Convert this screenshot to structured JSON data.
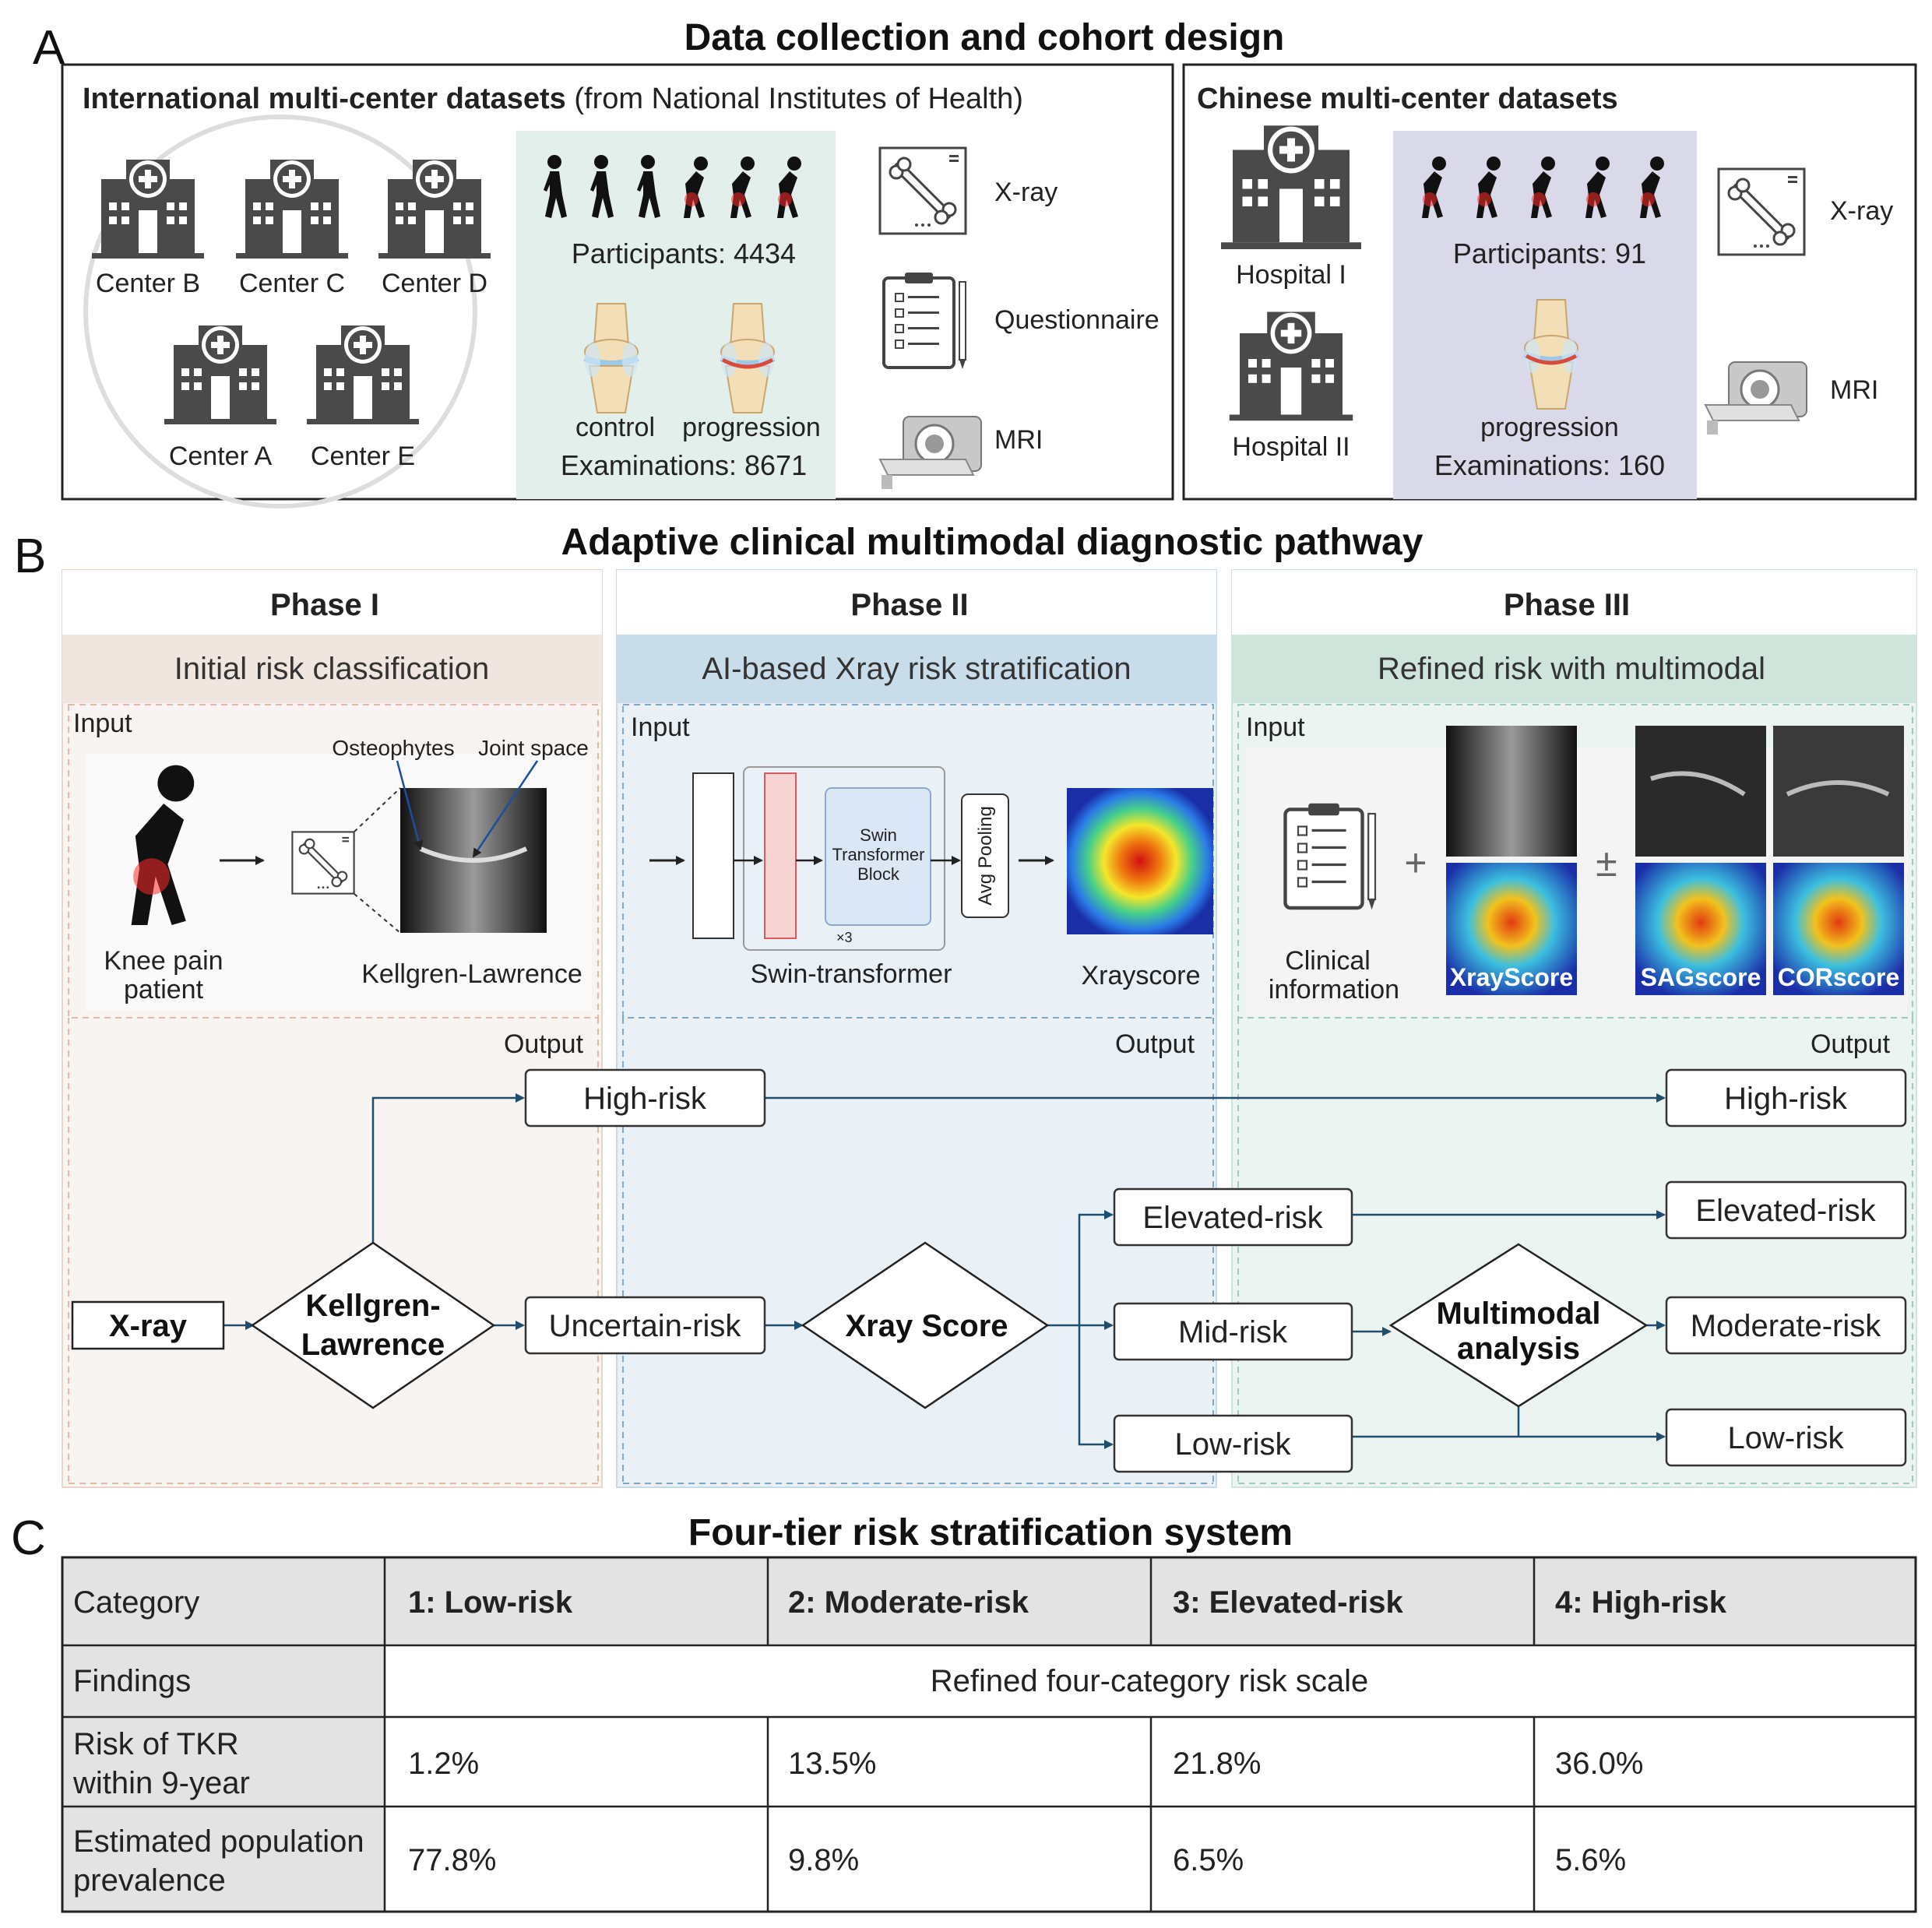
{
  "panel_a": {
    "label": "A",
    "title": "Data collection and cohort design",
    "intl": {
      "title_bold": "International multi-center datasets",
      "title_rest": " (from National Institutes of Health)",
      "centers": [
        "Center B",
        "Center C",
        "Center D",
        "Center A",
        "Center E"
      ],
      "participants": "Participants: 4434",
      "control": "control",
      "progression": "progression",
      "examinations": "Examinations: 8671",
      "modalities": [
        "X-ray",
        "Questionnaire",
        "MRI"
      ]
    },
    "cn": {
      "title": "Chinese multi-center datasets",
      "hospitals": [
        "Hospital I",
        "Hospital II"
      ],
      "participants": "Participants: 91",
      "progression": "progression",
      "examinations": "Examinations: 160",
      "modalities": [
        "X-ray",
        "MRI"
      ]
    },
    "colors": {
      "intl_bg": "#e3efea",
      "cn_bg": "#d9d9ea"
    }
  },
  "panel_b": {
    "label": "B",
    "title": "Adaptive clinical multimodal diagnostic pathway",
    "phases": [
      {
        "name": "Phase I",
        "subtitle": "Initial risk classification",
        "color": "#f1e6df"
      },
      {
        "name": "Phase II",
        "subtitle": "AI-based Xray risk stratification",
        "color": "#c9dcea"
      },
      {
        "name": "Phase III",
        "subtitle": "Refined risk with multimodal",
        "color": "#cfe5dc"
      }
    ],
    "input_label": "Input",
    "output_label": "Output",
    "phase1": {
      "osteophytes": "Osteophytes",
      "joint_space": "Joint space",
      "patient_line1": "Knee pain",
      "patient_line2": "patient",
      "kl": "Kellgren-Lawrence"
    },
    "phase2": {
      "swin_line1": "Swin",
      "swin_line2": "Transformer",
      "swin_line3": "Block",
      "x3": "×3",
      "avg_pooling": "Avg Pooling",
      "swin_label": "Swin-transformer",
      "xrayscore": "Xrayscore"
    },
    "phase3": {
      "clinical_line1": "Clinical",
      "clinical_line2": "information",
      "plus": "+",
      "plusminus": "±",
      "xray_score_tag": "XrayScore",
      "sag_tag": "SAGscore",
      "cor_tag": "CORscore"
    },
    "flow": {
      "xray": "X-ray",
      "kl_line1": "Kellgren-",
      "kl_line2": "Lawrence",
      "high_risk": "High-risk",
      "uncertain_risk": "Uncertain-risk",
      "xray_score": "Xray Score",
      "elevated_risk": "Elevated-risk",
      "mid_risk": "Mid-risk",
      "low_risk": "Low-risk",
      "multi_line1": "Multimodal",
      "multi_line2": "analysis",
      "out_high": "High-risk",
      "out_elevated": "Elevated-risk",
      "out_moderate": "Moderate-risk",
      "out_low": "Low-risk"
    }
  },
  "panel_c": {
    "label": "C",
    "title": "Four-tier risk stratification system",
    "header": [
      "Category",
      "1: Low-risk",
      "2: Moderate-risk",
      "3: Elevated-risk",
      "4: High-risk"
    ],
    "findings_label": "Findings",
    "findings_value": "Refined four-category risk scale",
    "risk_label_line1": "Risk of TKR",
    "risk_label_line2": "within 9-year",
    "risk_values": [
      "1.2%",
      "13.5%",
      "21.8%",
      "36.0%"
    ],
    "prev_label_line1": "Estimated population",
    "prev_label_line2": "prevalence",
    "prev_values": [
      "77.8%",
      "9.8%",
      "6.5%",
      "5.6%"
    ]
  }
}
